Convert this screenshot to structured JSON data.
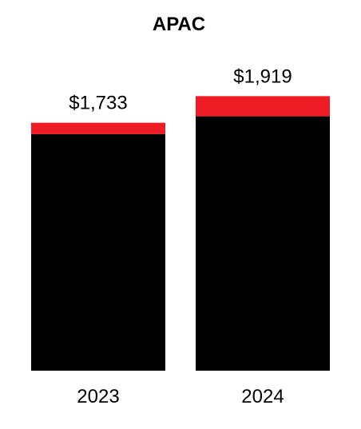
{
  "chart_data": {
    "type": "bar",
    "title": "APAC",
    "categories": [
      "2023",
      "2024"
    ],
    "series": [
      {
        "values": [
          1653,
          1778
        ]
      },
      {
        "values": [
          80,
          141
        ]
      }
    ],
    "totals": [
      1733,
      1919
    ],
    "total_labels": [
      "$1,733",
      "$1,919"
    ],
    "ylim": [
      0,
      2200
    ],
    "grid": false,
    "colors": [
      "#000000",
      "#ee1c24"
    ]
  }
}
